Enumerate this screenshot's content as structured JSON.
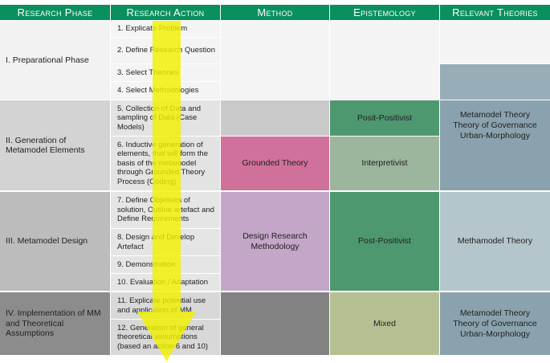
{
  "headers": {
    "phase": "Research Phase",
    "action": "Research Action",
    "method": "Method",
    "epistemology": "Epistemology",
    "theories": "Relevant Theories"
  },
  "phases": [
    "I. Preparational Phase",
    "II. Generation of Metamodel Elements",
    "III. Metamodel Design",
    "IV. Implementation of MM and Theoretical Assumptions"
  ],
  "actions": [
    "1. Explicate Problem",
    "2. Define Research Question",
    "3. Select Theories",
    "4. Select Methodologies",
    "5. Collection of Data and sampling of Data (Case Models)",
    "6. Inductive generation of elements, that will form the basis of the metamodel through Grounded Theory Process (Coding)",
    "7. Define Objetives of solution, Outline artefact and Define Requirements",
    "8. Design and Develop Artefact",
    "9. Demonstration",
    "10. Evaluation / Adaptation",
    "11. Explicate potential use and application of MM",
    "12. Generation of general theoretical assumptions (based an action 6 and 10)"
  ],
  "methods": {
    "grounded": "Grounded Theory",
    "design": "Design Research Methodology"
  },
  "epistemology": {
    "phase2_top": "Posit-Positivist",
    "phase2_bottom": "Interpretivist",
    "phase3": "Post-Positivist",
    "phase4": "Mixed"
  },
  "theories": {
    "phase2": [
      "Metamodel Theory",
      "Theory of Governance",
      "Urban-Morphology"
    ],
    "phase3": "Methamodel Theory",
    "phase4": [
      "Metamodel Theory",
      "Theory of Governance",
      "Urban-Morphology"
    ]
  },
  "colors": {
    "header_green": "#0a8f5e",
    "arrow_yellow": "#f0f000",
    "grounded_pink": "#d0719b",
    "design_mauve": "#c4a6c8",
    "epistemology_green": "#4e9870",
    "interpretivist_sage": "#9cb59d",
    "mixed_olive": "#b6c193",
    "theory_blue": "#8aa2ad"
  }
}
